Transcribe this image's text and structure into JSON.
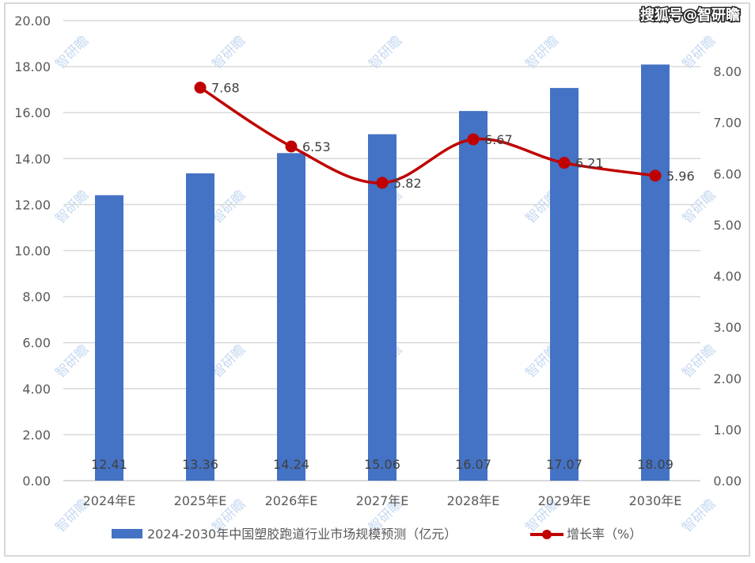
{
  "brand_watermark": "搜狐号@智研瞻",
  "watermark_text": "智研瞻",
  "colors": {
    "bar": "#4472c4",
    "line": "#c00000",
    "grid": "#d9d9d9",
    "axis_text": "#595959"
  },
  "legend": {
    "bar_label": "2024-2030年中国塑胶跑道行业市场规模预测（亿元）",
    "line_label": "增长率（%）"
  },
  "chart_data": {
    "type": "bar",
    "title": "",
    "categories": [
      "2024年E",
      "2025年E",
      "2026年E",
      "2027年E",
      "2028年E",
      "2029年E",
      "2030年E"
    ],
    "series": [
      {
        "name": "2024-2030年中国塑胶跑道行业市场规模预测（亿元）",
        "type": "bar",
        "axis": "left",
        "values": [
          12.41,
          13.36,
          14.24,
          15.06,
          16.07,
          17.07,
          18.09
        ]
      },
      {
        "name": "增长率（%）",
        "type": "line",
        "axis": "right",
        "values": [
          null,
          7.68,
          6.53,
          5.82,
          6.67,
          6.21,
          5.96
        ]
      }
    ],
    "data_labels": {
      "bar": [
        "12.41",
        "13.36",
        "14.24",
        "15.06",
        "16.07",
        "17.07",
        "18.09"
      ],
      "line": [
        "",
        "7.68",
        "6.53",
        "5.82",
        "6.67",
        "6.21",
        "5.96"
      ]
    },
    "xlabel": "",
    "ylabel": "",
    "ylim": [
      0,
      20
    ],
    "y2lim": [
      0,
      8
    ],
    "yticks": [
      "0.00",
      "2.00",
      "4.00",
      "6.00",
      "8.00",
      "10.00",
      "12.00",
      "14.00",
      "16.00",
      "18.00",
      "20.00"
    ],
    "y2ticks": [
      "0.00",
      "1.00",
      "2.00",
      "3.00",
      "4.00",
      "5.00",
      "6.00",
      "7.00",
      "8.00"
    ],
    "grid": true,
    "legend_position": "bottom"
  }
}
